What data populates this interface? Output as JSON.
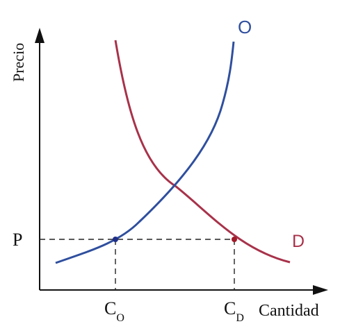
{
  "diagram": {
    "axes": {
      "y_label": "Precio",
      "x_label": "Cantidad"
    },
    "curves": {
      "supply": {
        "label": "O",
        "color": "#2f4f9e"
      },
      "demand": {
        "label": "D",
        "color": "#a8324a"
      }
    },
    "price_marker": {
      "label": "P"
    },
    "quantity_markers": {
      "supply": {
        "letter": "C",
        "subscript": "O"
      },
      "demand": {
        "letter": "C",
        "subscript": "D"
      }
    },
    "colors": {
      "axis": "#111111",
      "guide": "#222222"
    }
  }
}
